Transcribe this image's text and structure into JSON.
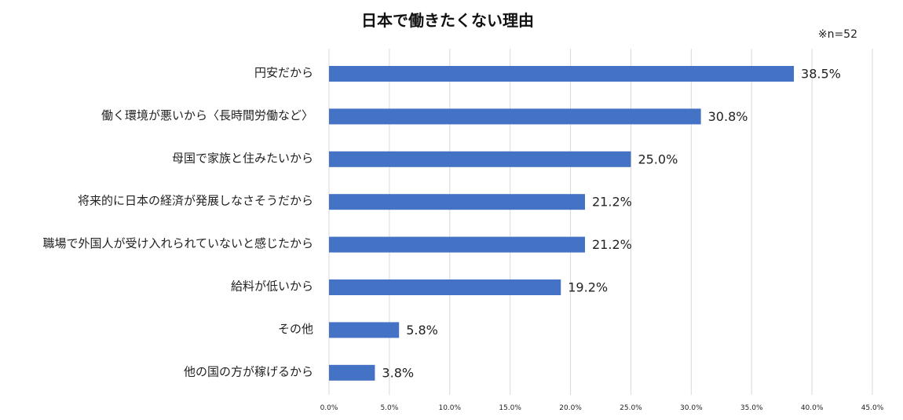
{
  "chart_data": {
    "type": "bar",
    "orientation": "horizontal",
    "title": "日本で働きたくない理由",
    "note": "※n=52",
    "categories": [
      "円安だから",
      "働く環境が悪いから〈長時間労働など〉",
      "母国で家族と住みたいから",
      "将来的に日本の経済が発展しなさそうだから",
      "職場で外国人が受け入れられていないと感じたから",
      "給料が低いから",
      "その他",
      "他の国の方が稼げるから"
    ],
    "values": [
      38.5,
      30.8,
      25.0,
      21.2,
      21.2,
      19.2,
      5.8,
      3.8
    ],
    "value_labels": [
      "38.5%",
      "30.8%",
      "25.0%",
      "21.2%",
      "21.2%",
      "19.2%",
      "5.8%",
      "3.8%"
    ],
    "x_ticks": [
      0,
      5,
      10,
      15,
      20,
      25,
      30,
      35,
      40,
      45
    ],
    "x_tick_labels": [
      "0.0%",
      "5.0%",
      "10.0%",
      "15.0%",
      "20.0%",
      "25.0%",
      "30.0%",
      "35.0%",
      "40.0%",
      "45.0%"
    ],
    "xlim": [
      0,
      45
    ],
    "grid": true,
    "bar_color": "#4472C4",
    "grid_color": "#D9D9D9"
  }
}
